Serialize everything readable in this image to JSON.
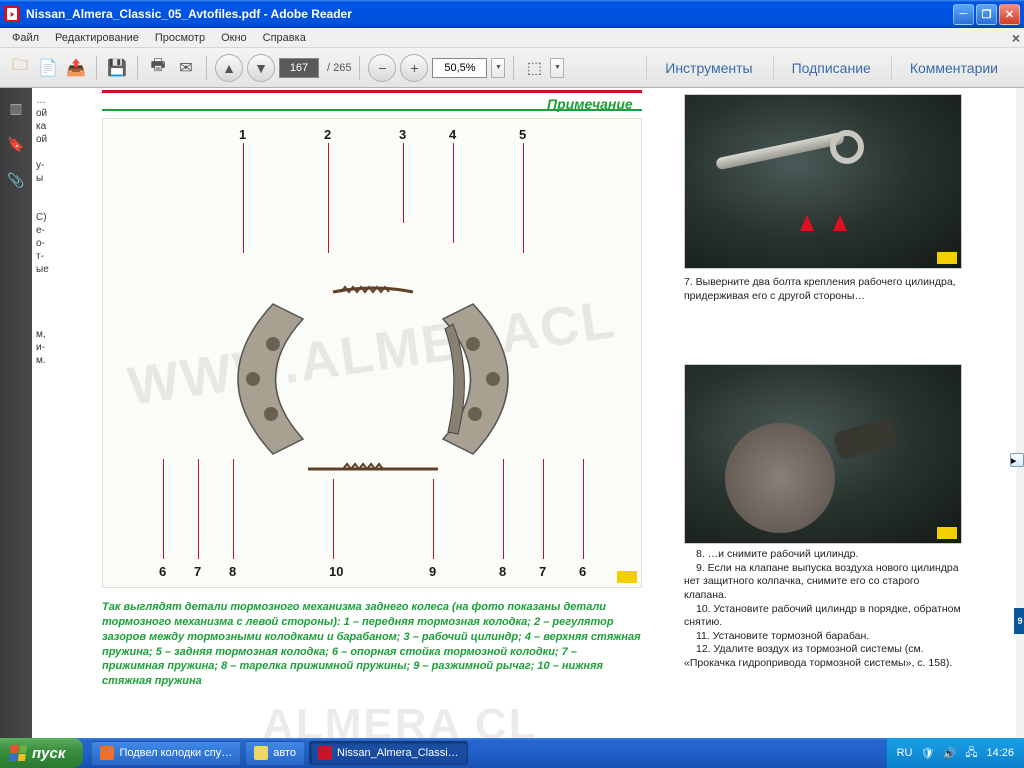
{
  "window": {
    "title": "Nissan_Almera_Classic_05_Avtofiles.pdf - Adobe Reader"
  },
  "menu": {
    "file": "Файл",
    "edit": "Редактирование",
    "view": "Просмотр",
    "window": "Окно",
    "help": "Справка"
  },
  "toolbar": {
    "page_current": "167",
    "page_total": "/  265",
    "zoom": "50,5%",
    "panel_tools": "Инструменты",
    "panel_sign": "Подписание",
    "panel_comment": "Комментарии"
  },
  "page": {
    "note_title": "Примечание",
    "callouts_top": [
      "1",
      "2",
      "3",
      "4",
      "5"
    ],
    "callouts_bottom": [
      "6",
      "7",
      "8",
      "10",
      "9",
      "8",
      "7",
      "6"
    ],
    "watermark": "WWW.ALMERACL",
    "wm_bottom": "ALMERA CL",
    "caption": "Так выглядят детали тормозного механизма заднего колеса (на фото показаны детали тормозного механизма с левой стороны): 1 – передняя тормозная колодка; 2 – регулятор зазоров между тормозными колодками и барабаном; 3 – рабочий цилиндр; 4 – верхняя стяжная пружина; 5 – задняя тормозная колодка; 6 – опорная стойка тормозной колодки; 7 – прижимная пружина; 8 – тарелка прижимной пружины; 9 – разжимной рычаг; 10 – нижняя стяжная пружина",
    "left_strip_lines": [
      "…",
      "ой",
      "ка",
      "ой",
      "",
      "у-",
      "ы",
      "",
      "",
      "С)",
      "е-",
      "о-",
      "т-",
      "ые",
      "",
      "",
      "",
      "",
      "м,",
      "и-",
      "м."
    ],
    "right": {
      "p7": "7. Выверните два болта крепления рабочего цилиндра, придерживая его с другой стороны…",
      "p8": "8. …и снимите рабочий цилиндр.",
      "p9": "9. Если на клапане выпуска воздуха нового цилиндра нет защитного колпачка, снимите его со старого клапана.",
      "p10": "10. Установите рабочий цилиндр в порядке, обратном снятию.",
      "p11": "11. Установите тормозной барабан.",
      "p12": "12. Удалите воздух из тормозной системы (см. «Прокачка гидропривода тормозной системы», с. 158)."
    },
    "blue_tab": "9"
  },
  "taskbar": {
    "start": "пуск",
    "items": [
      {
        "label": "Подвел колодки спу…",
        "color": "#f07028"
      },
      {
        "label": "авто",
        "color": "#f0d860"
      },
      {
        "label": "Nissan_Almera_Classi…",
        "color": "#ce1126",
        "active": true
      }
    ],
    "lang": "RU",
    "clock": "14:26"
  },
  "colors": {
    "xp_blue": "#0054e3",
    "xp_green": "#3a9040",
    "adobe_red": "#ce1126",
    "callout_red": "#c91020",
    "caption_green": "#1ca038",
    "taskbar_tray": "#0a80c8"
  }
}
